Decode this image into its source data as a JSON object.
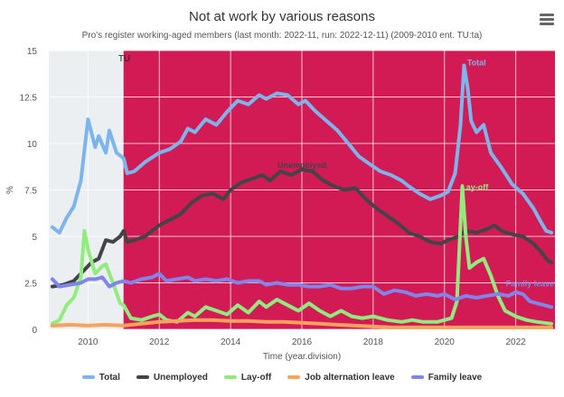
{
  "header": {
    "title": "Not at work by various reasons",
    "subtitle": "Pro's register working-aged members (last month: 2022-11, run: 2022-12-11) (2009-2010 ent. TU:ta)",
    "menu_icon": "hamburger-menu-icon"
  },
  "chart_data": {
    "type": "line",
    "xlabel": "Time (year.division)",
    "ylabel": "%",
    "xlim": [
      2008.9,
      2023.1
    ],
    "ylim": [
      0,
      15
    ],
    "xticks": [
      2010,
      2012,
      2014,
      2016,
      2018,
      2020,
      2022
    ],
    "yticks": [
      0,
      2.5,
      5,
      7.5,
      10,
      12.5,
      15
    ],
    "grid": true,
    "legend_position": "bottom",
    "plot_background": "#d21a55",
    "bands": [
      {
        "from": 2008.9,
        "to": 2011.0,
        "color": "#eceff1",
        "label": ""
      },
      {
        "from": 2011.0,
        "to": 2023.1,
        "color": "#d21a55",
        "label": "TU"
      }
    ],
    "series": [
      {
        "name": "Total",
        "color": "#7cb5ec",
        "label_at": [
          2020.9,
          14.2
        ],
        "points": [
          [
            2009.0,
            5.5
          ],
          [
            2009.2,
            5.2
          ],
          [
            2009.4,
            6.0
          ],
          [
            2009.6,
            6.6
          ],
          [
            2009.8,
            8.0
          ],
          [
            2010.0,
            11.3
          ],
          [
            2010.2,
            9.8
          ],
          [
            2010.3,
            10.4
          ],
          [
            2010.5,
            9.5
          ],
          [
            2010.6,
            10.7
          ],
          [
            2010.8,
            9.5
          ],
          [
            2011.0,
            9.2
          ],
          [
            2011.1,
            8.4
          ],
          [
            2011.3,
            8.5
          ],
          [
            2011.6,
            9.0
          ],
          [
            2012.0,
            9.5
          ],
          [
            2012.3,
            9.7
          ],
          [
            2012.6,
            10.1
          ],
          [
            2012.8,
            10.8
          ],
          [
            2013.0,
            10.6
          ],
          [
            2013.3,
            11.3
          ],
          [
            2013.6,
            11.0
          ],
          [
            2013.9,
            11.7
          ],
          [
            2014.2,
            12.3
          ],
          [
            2014.5,
            12.1
          ],
          [
            2014.8,
            12.6
          ],
          [
            2015.0,
            12.4
          ],
          [
            2015.3,
            12.7
          ],
          [
            2015.6,
            12.6
          ],
          [
            2015.9,
            12.1
          ],
          [
            2016.1,
            12.3
          ],
          [
            2016.4,
            11.7
          ],
          [
            2016.7,
            11.2
          ],
          [
            2017.0,
            10.7
          ],
          [
            2017.3,
            10.0
          ],
          [
            2017.6,
            9.3
          ],
          [
            2017.9,
            8.9
          ],
          [
            2018.2,
            8.5
          ],
          [
            2018.5,
            8.3
          ],
          [
            2018.8,
            8.0
          ],
          [
            2019.0,
            7.7
          ],
          [
            2019.3,
            7.3
          ],
          [
            2019.6,
            7.0
          ],
          [
            2019.9,
            7.2
          ],
          [
            2020.1,
            7.4
          ],
          [
            2020.3,
            8.4
          ],
          [
            2020.45,
            11.0
          ],
          [
            2020.55,
            14.2
          ],
          [
            2020.65,
            13.0
          ],
          [
            2020.75,
            11.2
          ],
          [
            2020.9,
            10.6
          ],
          [
            2021.1,
            11.0
          ],
          [
            2021.3,
            9.5
          ],
          [
            2021.6,
            8.7
          ],
          [
            2021.9,
            7.8
          ],
          [
            2022.2,
            7.3
          ],
          [
            2022.5,
            6.5
          ],
          [
            2022.7,
            5.8
          ],
          [
            2022.85,
            5.3
          ],
          [
            2023.0,
            5.2
          ]
        ]
      },
      {
        "name": "Unemployed",
        "color": "#434348",
        "label_at": [
          2016.0,
          8.7
        ],
        "points": [
          [
            2009.0,
            2.3
          ],
          [
            2009.3,
            2.4
          ],
          [
            2009.6,
            2.6
          ],
          [
            2009.9,
            3.2
          ],
          [
            2010.1,
            3.6
          ],
          [
            2010.3,
            3.8
          ],
          [
            2010.5,
            4.8
          ],
          [
            2010.7,
            4.7
          ],
          [
            2010.9,
            5.0
          ],
          [
            2011.0,
            5.3
          ],
          [
            2011.1,
            4.7
          ],
          [
            2011.3,
            4.8
          ],
          [
            2011.6,
            5.0
          ],
          [
            2012.0,
            5.6
          ],
          [
            2012.3,
            5.9
          ],
          [
            2012.6,
            6.2
          ],
          [
            2012.9,
            6.8
          ],
          [
            2013.2,
            7.2
          ],
          [
            2013.5,
            7.3
          ],
          [
            2013.8,
            7.0
          ],
          [
            2014.0,
            7.5
          ],
          [
            2014.3,
            7.9
          ],
          [
            2014.6,
            8.1
          ],
          [
            2014.9,
            8.3
          ],
          [
            2015.1,
            8.0
          ],
          [
            2015.4,
            8.5
          ],
          [
            2015.7,
            8.3
          ],
          [
            2016.0,
            8.6
          ],
          [
            2016.3,
            8.5
          ],
          [
            2016.6,
            8.0
          ],
          [
            2016.9,
            7.7
          ],
          [
            2017.2,
            7.5
          ],
          [
            2017.5,
            7.6
          ],
          [
            2017.8,
            7.0
          ],
          [
            2018.1,
            6.5
          ],
          [
            2018.4,
            6.1
          ],
          [
            2018.7,
            5.7
          ],
          [
            2019.0,
            5.2
          ],
          [
            2019.3,
            5.0
          ],
          [
            2019.6,
            4.7
          ],
          [
            2019.9,
            4.6
          ],
          [
            2020.1,
            4.8
          ],
          [
            2020.4,
            5.0
          ],
          [
            2020.6,
            5.3
          ],
          [
            2020.9,
            5.2
          ],
          [
            2021.2,
            5.4
          ],
          [
            2021.4,
            5.6
          ],
          [
            2021.6,
            5.3
          ],
          [
            2021.9,
            5.1
          ],
          [
            2022.2,
            5.0
          ],
          [
            2022.5,
            4.6
          ],
          [
            2022.7,
            4.2
          ],
          [
            2022.9,
            3.7
          ],
          [
            2023.0,
            3.6
          ]
        ]
      },
      {
        "name": "Lay-off",
        "color": "#90ed7d",
        "label_at": [
          2020.85,
          7.5
        ],
        "points": [
          [
            2009.0,
            0.3
          ],
          [
            2009.2,
            0.5
          ],
          [
            2009.4,
            1.3
          ],
          [
            2009.6,
            1.7
          ],
          [
            2009.8,
            2.8
          ],
          [
            2009.9,
            5.3
          ],
          [
            2010.0,
            4.3
          ],
          [
            2010.2,
            3.0
          ],
          [
            2010.4,
            3.4
          ],
          [
            2010.5,
            3.5
          ],
          [
            2010.7,
            2.5
          ],
          [
            2010.9,
            1.4
          ],
          [
            2011.0,
            1.3
          ],
          [
            2011.2,
            0.6
          ],
          [
            2011.5,
            0.5
          ],
          [
            2011.8,
            0.7
          ],
          [
            2012.0,
            0.8
          ],
          [
            2012.2,
            0.5
          ],
          [
            2012.5,
            0.4
          ],
          [
            2012.8,
            0.9
          ],
          [
            2013.0,
            0.7
          ],
          [
            2013.3,
            1.2
          ],
          [
            2013.6,
            1.0
          ],
          [
            2013.9,
            0.8
          ],
          [
            2014.2,
            1.3
          ],
          [
            2014.5,
            0.9
          ],
          [
            2014.8,
            1.5
          ],
          [
            2015.0,
            1.2
          ],
          [
            2015.3,
            1.6
          ],
          [
            2015.6,
            1.3
          ],
          [
            2015.9,
            1.0
          ],
          [
            2016.2,
            1.4
          ],
          [
            2016.5,
            1.0
          ],
          [
            2016.8,
            0.7
          ],
          [
            2017.1,
            1.0
          ],
          [
            2017.4,
            0.7
          ],
          [
            2017.7,
            0.6
          ],
          [
            2018.0,
            0.7
          ],
          [
            2018.4,
            0.5
          ],
          [
            2018.8,
            0.4
          ],
          [
            2019.1,
            0.5
          ],
          [
            2019.4,
            0.4
          ],
          [
            2019.8,
            0.4
          ],
          [
            2020.0,
            0.5
          ],
          [
            2020.2,
            0.6
          ],
          [
            2020.35,
            1.5
          ],
          [
            2020.5,
            7.7
          ],
          [
            2020.6,
            5.0
          ],
          [
            2020.7,
            3.3
          ],
          [
            2020.9,
            3.6
          ],
          [
            2021.1,
            3.8
          ],
          [
            2021.3,
            2.9
          ],
          [
            2021.5,
            1.8
          ],
          [
            2021.7,
            1.0
          ],
          [
            2022.0,
            0.7
          ],
          [
            2022.3,
            0.5
          ],
          [
            2022.6,
            0.4
          ],
          [
            2023.0,
            0.3
          ]
        ]
      },
      {
        "name": "Job alternation leave",
        "color": "#f7a35c",
        "points": [
          [
            2009.0,
            0.2
          ],
          [
            2009.5,
            0.25
          ],
          [
            2010.0,
            0.2
          ],
          [
            2010.5,
            0.25
          ],
          [
            2011.0,
            0.2
          ],
          [
            2011.5,
            0.3
          ],
          [
            2012.0,
            0.4
          ],
          [
            2012.5,
            0.45
          ],
          [
            2013.0,
            0.5
          ],
          [
            2013.5,
            0.5
          ],
          [
            2014.0,
            0.45
          ],
          [
            2014.5,
            0.45
          ],
          [
            2015.0,
            0.4
          ],
          [
            2015.5,
            0.4
          ],
          [
            2016.0,
            0.35
          ],
          [
            2016.5,
            0.3
          ],
          [
            2017.0,
            0.25
          ],
          [
            2017.5,
            0.2
          ],
          [
            2018.0,
            0.15
          ],
          [
            2018.5,
            0.1
          ],
          [
            2019.0,
            0.1
          ],
          [
            2020.0,
            0.1
          ],
          [
            2021.0,
            0.1
          ],
          [
            2022.0,
            0.1
          ],
          [
            2023.0,
            0.1
          ]
        ]
      },
      {
        "name": "Family leave",
        "color": "#8085e9",
        "label_at": [
          2022.4,
          2.3
        ],
        "points": [
          [
            2009.0,
            2.7
          ],
          [
            2009.2,
            2.3
          ],
          [
            2009.5,
            2.4
          ],
          [
            2009.8,
            2.5
          ],
          [
            2010.0,
            2.7
          ],
          [
            2010.2,
            2.7
          ],
          [
            2010.4,
            2.8
          ],
          [
            2010.6,
            2.3
          ],
          [
            2010.8,
            2.5
          ],
          [
            2011.0,
            2.6
          ],
          [
            2011.2,
            2.5
          ],
          [
            2011.5,
            2.7
          ],
          [
            2011.8,
            2.8
          ],
          [
            2012.0,
            3.0
          ],
          [
            2012.2,
            2.6
          ],
          [
            2012.5,
            2.7
          ],
          [
            2012.8,
            2.8
          ],
          [
            2013.0,
            2.6
          ],
          [
            2013.3,
            2.7
          ],
          [
            2013.6,
            2.6
          ],
          [
            2013.9,
            2.7
          ],
          [
            2014.2,
            2.5
          ],
          [
            2014.5,
            2.6
          ],
          [
            2014.8,
            2.6
          ],
          [
            2015.0,
            2.4
          ],
          [
            2015.3,
            2.5
          ],
          [
            2015.6,
            2.4
          ],
          [
            2015.9,
            2.4
          ],
          [
            2016.2,
            2.3
          ],
          [
            2016.5,
            2.3
          ],
          [
            2016.8,
            2.4
          ],
          [
            2017.1,
            2.2
          ],
          [
            2017.4,
            2.2
          ],
          [
            2017.7,
            2.3
          ],
          [
            2018.0,
            2.3
          ],
          [
            2018.3,
            1.9
          ],
          [
            2018.6,
            2.1
          ],
          [
            2018.9,
            2.0
          ],
          [
            2019.2,
            1.8
          ],
          [
            2019.5,
            1.9
          ],
          [
            2019.8,
            1.8
          ],
          [
            2020.0,
            1.9
          ],
          [
            2020.3,
            1.6
          ],
          [
            2020.6,
            1.8
          ],
          [
            2020.9,
            1.7
          ],
          [
            2021.2,
            1.8
          ],
          [
            2021.5,
            1.9
          ],
          [
            2021.8,
            1.8
          ],
          [
            2022.0,
            2.0
          ],
          [
            2022.2,
            1.9
          ],
          [
            2022.4,
            1.5
          ],
          [
            2022.6,
            1.4
          ],
          [
            2022.8,
            1.3
          ],
          [
            2023.0,
            1.2
          ]
        ]
      }
    ]
  }
}
